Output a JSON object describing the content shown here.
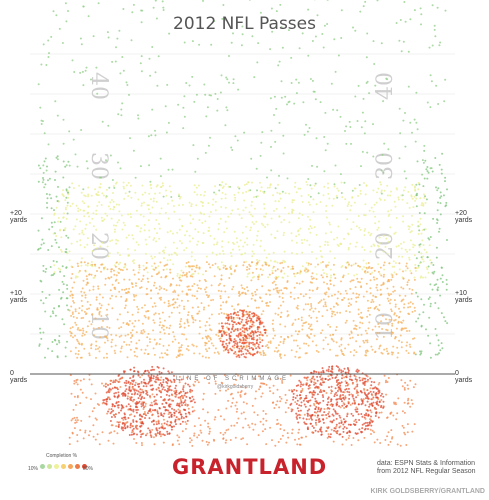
{
  "chart_data": {
    "type": "scatter",
    "title": "2012 NFL Passes",
    "field_numbers_left": [
      "40",
      "30",
      "20",
      "10"
    ],
    "field_numbers_right": [
      "40",
      "30",
      "20",
      "10"
    ],
    "y_axis_labels": [
      "+20\nyards",
      "+10\nyards",
      "0\nyards"
    ],
    "y_ticks": [
      20,
      10,
      0
    ],
    "ylim": [
      -10,
      55
    ],
    "xlim": [
      -27,
      27
    ],
    "line_of_scrimmage_label": "LINE OF SCRIMMAGE",
    "handle": "@kirkgoldsberry",
    "legend": {
      "title": "Completion %",
      "min_label": "10%",
      "max_label": "80%",
      "colors": [
        "#a8d8a0",
        "#cfe79a",
        "#eef29a",
        "#f7d070",
        "#f6a75a",
        "#ee7a46",
        "#e14a32"
      ]
    },
    "zones": [
      {
        "name": "deep",
        "x": [
          -26,
          26
        ],
        "y": [
          22,
          52
        ],
        "density": 0.9,
        "color": "#8fce86"
      },
      {
        "name": "left-sideline",
        "x": [
          -26,
          -22
        ],
        "y": [
          2,
          28
        ],
        "density": 3.5,
        "color": "#7fc47c"
      },
      {
        "name": "right-sideline",
        "x": [
          22,
          26
        ],
        "y": [
          2,
          28
        ],
        "density": 3.5,
        "color": "#7fc47c"
      },
      {
        "name": "intermediate",
        "x": [
          -24,
          24
        ],
        "y": [
          12,
          24
        ],
        "density": 4.5,
        "color": "#e9ee8f"
      },
      {
        "name": "short-middle",
        "x": [
          -22,
          22
        ],
        "y": [
          2,
          14
        ],
        "density": 7,
        "color": "#f6b25e"
      },
      {
        "name": "center-cluster",
        "x": [
          -3,
          3
        ],
        "y": [
          2,
          8
        ],
        "density": 22,
        "color": "#e8522f"
      },
      {
        "name": "left-flat",
        "x": [
          -18,
          -6
        ],
        "y": [
          -8,
          1
        ],
        "density": 14,
        "color": "#e04a30"
      },
      {
        "name": "right-flat",
        "x": [
          6,
          18
        ],
        "y": [
          -8,
          1
        ],
        "density": 14,
        "color": "#e04a30"
      },
      {
        "name": "behind-los",
        "x": [
          -22,
          22
        ],
        "y": [
          -9,
          0
        ],
        "density": 4,
        "color": "#f28a52"
      }
    ]
  },
  "brand": "GRANTLAND",
  "source": {
    "line1": "data: ESPN Stats & Information",
    "line2": "from 2012 NFL Regular Season"
  },
  "credit": "KIRK GOLDSBERRY/GRANTLAND"
}
